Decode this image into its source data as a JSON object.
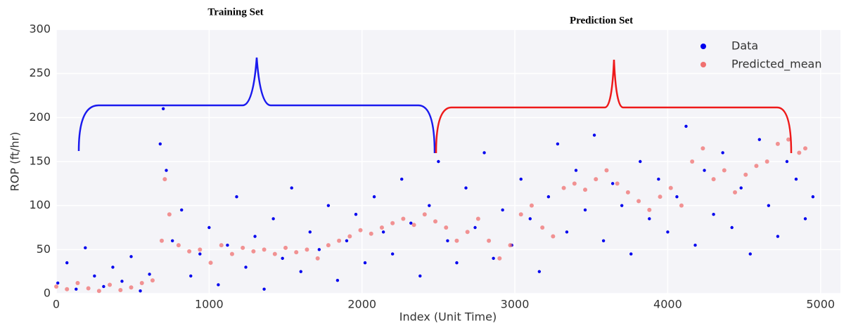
{
  "chart_data": {
    "type": "scatter",
    "annotations": [
      "Training Set",
      "Prediction Set"
    ],
    "x_label": "Index (Unit Time)",
    "y_label": "ROP (ft/hr)",
    "xlim": [
      0,
      5130
    ],
    "ylim": [
      0,
      300
    ],
    "xticks": [
      0,
      1000,
      2000,
      3000,
      4000,
      5000
    ],
    "yticks": [
      0,
      50,
      100,
      150,
      200,
      250,
      300
    ],
    "grid": true,
    "legend": "upper right",
    "series": [
      {
        "name": "Data",
        "color": "#0000ee",
        "x": [
          10,
          70,
          130,
          190,
          250,
          310,
          370,
          430,
          490,
          550,
          610,
          680,
          700,
          720,
          760,
          820,
          880,
          940,
          1000,
          1060,
          1120,
          1180,
          1240,
          1300,
          1360,
          1420,
          1480,
          1540,
          1600,
          1660,
          1720,
          1780,
          1840,
          1900,
          1960,
          2020,
          2080,
          2140,
          2200,
          2260,
          2320,
          2380,
          2440,
          2500,
          2560,
          2620,
          2680,
          2740,
          2800,
          2860,
          2920,
          2980,
          3040,
          3100,
          3160,
          3220,
          3280,
          3340,
          3400,
          3460,
          3520,
          3580,
          3640,
          3700,
          3760,
          3820,
          3880,
          3940,
          4000,
          4060,
          4120,
          4180,
          4240,
          4300,
          4360,
          4420,
          4480,
          4540,
          4600,
          4660,
          4720,
          4780,
          4840,
          4900,
          4950
        ],
        "values": [
          12,
          35,
          5,
          52,
          20,
          8,
          30,
          14,
          42,
          3,
          22,
          170,
          210,
          140,
          60,
          95,
          20,
          45,
          75,
          10,
          55,
          110,
          30,
          65,
          5,
          85,
          40,
          120,
          25,
          70,
          50,
          100,
          15,
          60,
          90,
          35,
          110,
          70,
          45,
          130,
          80,
          20,
          100,
          150,
          60,
          35,
          120,
          75,
          160,
          40,
          95,
          55,
          130,
          85,
          25,
          110,
          170,
          70,
          140,
          95,
          180,
          60,
          125,
          100,
          45,
          150,
          85,
          130,
          70,
          110,
          190,
          55,
          140,
          90,
          160,
          75,
          120,
          45,
          175,
          100,
          65,
          150,
          130,
          85,
          110
        ]
      },
      {
        "name": "Predicted_mean",
        "color": "#f07070",
        "x": [
          0,
          70,
          140,
          210,
          280,
          350,
          420,
          490,
          560,
          630,
          690,
          710,
          740,
          800,
          870,
          940,
          1010,
          1080,
          1150,
          1220,
          1290,
          1360,
          1430,
          1500,
          1570,
          1640,
          1710,
          1780,
          1850,
          1920,
          1990,
          2060,
          2130,
          2200,
          2270,
          2340,
          2410,
          2480,
          2550,
          2620,
          2690,
          2760,
          2830,
          2900,
          2970,
          3040,
          3110,
          3180,
          3250,
          3320,
          3390,
          3460,
          3530,
          3600,
          3670,
          3740,
          3810,
          3880,
          3950,
          4020,
          4090,
          4160,
          4230,
          4300,
          4370,
          4440,
          4510,
          4580,
          4650,
          4720,
          4790,
          4860,
          4900
        ],
        "values": [
          8,
          5,
          12,
          6,
          3,
          10,
          4,
          7,
          12,
          15,
          60,
          130,
          90,
          55,
          48,
          50,
          35,
          55,
          45,
          52,
          48,
          50,
          45,
          52,
          47,
          50,
          40,
          55,
          60,
          65,
          72,
          68,
          75,
          80,
          85,
          78,
          90,
          82,
          75,
          60,
          70,
          85,
          60,
          40,
          55,
          90,
          100,
          75,
          65,
          120,
          125,
          118,
          130,
          140,
          125,
          115,
          105,
          95,
          110,
          120,
          100,
          150,
          165,
          130,
          140,
          115,
          135,
          145,
          150,
          170,
          175,
          160,
          165
        ]
      }
    ]
  }
}
